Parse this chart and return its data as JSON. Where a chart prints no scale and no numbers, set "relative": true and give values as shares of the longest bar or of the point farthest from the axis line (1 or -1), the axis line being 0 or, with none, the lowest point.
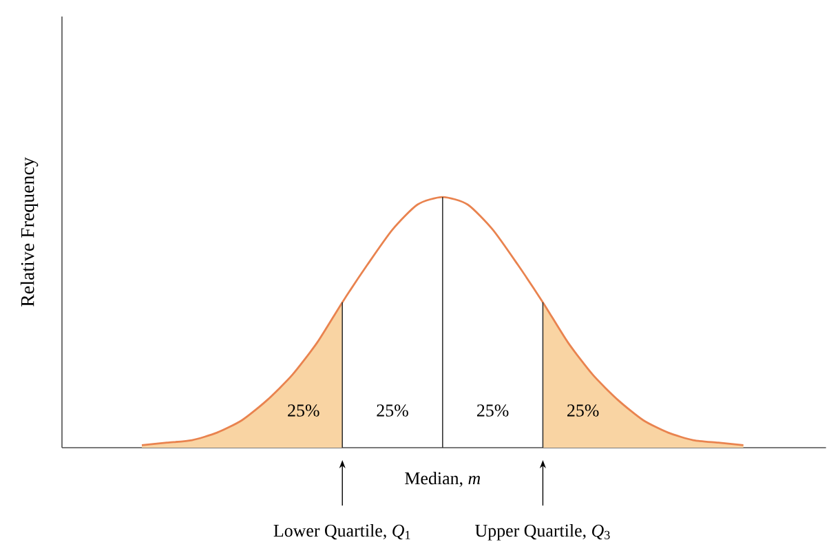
{
  "chart_data": {
    "type": "line",
    "relative": true,
    "ylabel": "Relative Frequency",
    "categories": [
      null,
      null,
      null,
      null,
      null,
      null,
      null,
      null,
      "Lower Quartile, *Q*$_{1}$",
      null,
      null,
      null,
      "Median, *m*",
      null,
      null,
      null,
      "Upper Quartile, *Q*$_{3}$",
      null,
      null,
      null,
      null,
      null,
      null,
      null,
      null
    ],
    "series": [
      {
        "type": "area",
        "color": "#f9d4a3",
        "values": [
          0.01,
          0.02,
          0.03,
          0.06,
          0.11,
          0.19,
          0.29,
          0.42,
          0.58,
          null,
          null,
          null,
          null,
          null,
          null,
          null,
          null,
          null,
          null,
          null,
          null,
          null,
          null,
          null,
          null
        ]
      },
      {
        "type": "area",
        "color": "#f9d4a3",
        "values": [
          null,
          null,
          null,
          null,
          null,
          null,
          null,
          null,
          null,
          null,
          null,
          null,
          null,
          null,
          null,
          null,
          0.58,
          0.42,
          0.29,
          0.19,
          0.11,
          0.06,
          0.03,
          0.02,
          0.01
        ]
      },
      {
        "color": "#e9834f",
        "values": [
          0.01,
          0.02,
          0.03,
          0.06,
          0.11,
          0.19,
          0.29,
          0.42,
          0.58,
          0.73,
          0.87,
          0.97,
          1,
          0.97,
          0.87,
          0.73,
          0.58,
          0.42,
          0.29,
          0.19,
          0.11,
          0.06,
          0.03,
          0.02,
          0.01
        ]
      }
    ],
    "annotations": [
      "25%",
      "25%",
      "25%",
      "25%"
    ]
  }
}
